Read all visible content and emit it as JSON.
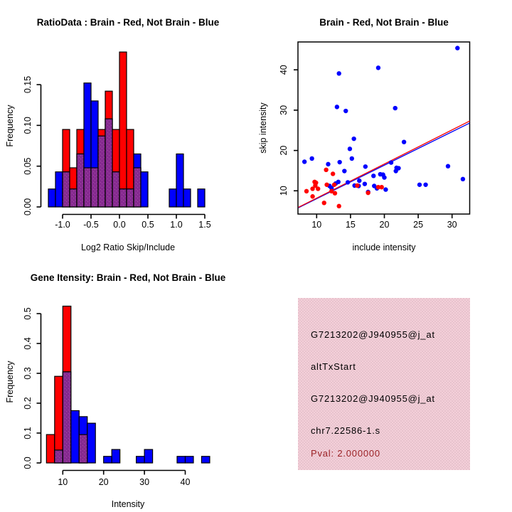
{
  "figure": {
    "background": "#ffffff",
    "colors": {
      "brain_red": "#ff0000",
      "not_brain_blue": "#0000ff",
      "overlap_purple": "#862a90",
      "overlap_dot": "#a850a8",
      "axis": "#000000",
      "pval_text": "#9b2226",
      "info_panel_pink": "#eec9d3"
    }
  },
  "chart_data": [
    {
      "id": "ratio_hist",
      "type": "bar",
      "subtype": "overlaid-histogram",
      "title": "RatioData : Brain - Red, Not Brain - Blue",
      "xlabel": "Log2 Ratio Skip/Include",
      "ylabel": "Frequency",
      "legend_note": "Brain = red, Not Brain = blue, overlap = purple",
      "x_ticks": [
        "-1.0",
        "-0.5",
        "0.0",
        "0.5",
        "1.0",
        "1.5"
      ],
      "x_tick_values": [
        -1.0,
        -0.5,
        0.0,
        0.5,
        1.0,
        1.5
      ],
      "y_ticks": [
        "0.00",
        "0.05",
        "0.10",
        "0.15"
      ],
      "y_tick_values": [
        0.0,
        0.05,
        0.1,
        0.15
      ],
      "xlim": [
        -1.3,
        1.55
      ],
      "ylim": [
        0,
        0.19
      ],
      "bin_width": 0.125,
      "bars": [
        {
          "x0": -1.25,
          "red": 0,
          "blue": 0.022
        },
        {
          "x0": -1.125,
          "red": 0,
          "blue": 0.043
        },
        {
          "x0": -1.0,
          "red": 0.095,
          "blue": 0.043
        },
        {
          "x0": -0.875,
          "red": 0.048,
          "blue": 0.022
        },
        {
          "x0": -0.75,
          "red": 0.095,
          "blue": 0.065
        },
        {
          "x0": -0.625,
          "red": 0.048,
          "blue": 0.152
        },
        {
          "x0": -0.5,
          "red": 0.048,
          "blue": 0.13
        },
        {
          "x0": -0.375,
          "red": 0.095,
          "blue": 0.087
        },
        {
          "x0": -0.25,
          "red": 0.142,
          "blue": 0.108
        },
        {
          "x0": -0.125,
          "red": 0.095,
          "blue": 0.043
        },
        {
          "x0": 0.0,
          "red": 0.19,
          "blue": 0.022
        },
        {
          "x0": 0.125,
          "red": 0.095,
          "blue": 0.022
        },
        {
          "x0": 0.25,
          "red": 0.048,
          "blue": 0.065
        },
        {
          "x0": 0.375,
          "red": 0,
          "blue": 0.043
        },
        {
          "x0": 0.875,
          "red": 0,
          "blue": 0.022
        },
        {
          "x0": 1.0,
          "red": 0,
          "blue": 0.065
        },
        {
          "x0": 1.125,
          "red": 0,
          "blue": 0.022
        },
        {
          "x0": 1.375,
          "red": 0,
          "blue": 0.022
        }
      ]
    },
    {
      "id": "scatter",
      "type": "scatter",
      "title": "Brain - Red, Not Brain - Blue",
      "xlabel": "include intensity",
      "ylabel": "skip intensity",
      "x_ticks": [
        "10",
        "15",
        "20",
        "25",
        "30"
      ],
      "x_tick_values": [
        10,
        15,
        20,
        25,
        30
      ],
      "y_ticks": [
        "10",
        "20",
        "30",
        "40"
      ],
      "y_tick_values": [
        10,
        20,
        30,
        40
      ],
      "xlim": [
        7.3,
        32.6
      ],
      "ylim": [
        4.2,
        46.9
      ],
      "series": [
        {
          "name": "Not Brain",
          "color": "blue",
          "points": [
            [
              30.8,
              45.4
            ],
            [
              19.1,
              40.5
            ],
            [
              13.3,
              39.1
            ],
            [
              13.0,
              30.8
            ],
            [
              14.3,
              29.8
            ],
            [
              21.6,
              30.5
            ],
            [
              15.5,
              22.9
            ],
            [
              22.9,
              22.1
            ],
            [
              14.9,
              20.4
            ],
            [
              15.2,
              18.0
            ],
            [
              9.3,
              18.0
            ],
            [
              8.2,
              17.2
            ],
            [
              13.4,
              17.1
            ],
            [
              11.7,
              16.6
            ],
            [
              21.0,
              17.0
            ],
            [
              14.1,
              14.9
            ],
            [
              29.4,
              16.1
            ],
            [
              21.8,
              15.7
            ],
            [
              22.1,
              15.6
            ],
            [
              21.7,
              14.9
            ],
            [
              17.2,
              16.0
            ],
            [
              19.4,
              14.1
            ],
            [
              19.8,
              14.0
            ],
            [
              20.0,
              13.3
            ],
            [
              18.4,
              13.7
            ],
            [
              16.3,
              12.5
            ],
            [
              17.1,
              11.7
            ],
            [
              16.2,
              11.2
            ],
            [
              15.6,
              11.3
            ],
            [
              14.6,
              12.1
            ],
            [
              13.2,
              12.2
            ],
            [
              12.8,
              11.8
            ],
            [
              11.9,
              11.2
            ],
            [
              18.5,
              11.2
            ],
            [
              18.9,
              10.6
            ],
            [
              20.2,
              10.3
            ],
            [
              17.6,
              9.7
            ],
            [
              31.6,
              12.9
            ],
            [
              25.2,
              11.5
            ],
            [
              26.1,
              11.5
            ],
            [
              12.2,
              10.7
            ]
          ]
        },
        {
          "name": "Brain",
          "color": "red",
          "points": [
            [
              11.4,
              15.2
            ],
            [
              12.4,
              14.2
            ],
            [
              9.7,
              12.2
            ],
            [
              9.9,
              12.0
            ],
            [
              9.8,
              11.3
            ],
            [
              9.4,
              10.5
            ],
            [
              10.2,
              10.5
            ],
            [
              11.5,
              11.5
            ],
            [
              12.6,
              11.5
            ],
            [
              12.2,
              9.9
            ],
            [
              12.7,
              9.4
            ],
            [
              8.5,
              9.9
            ],
            [
              9.4,
              8.6
            ],
            [
              11.1,
              7.0
            ],
            [
              13.3,
              6.2
            ],
            [
              16.0,
              11.3
            ],
            [
              17.6,
              9.5
            ],
            [
              19.1,
              10.9
            ],
            [
              19.6,
              10.9
            ]
          ]
        }
      ],
      "fit_lines": [
        {
          "name": "blue-fit",
          "color": "blue",
          "x1": 7.3,
          "y1": 5.8,
          "x2": 32.6,
          "y2": 26.8
        },
        {
          "name": "red-fit",
          "color": "red",
          "x1": 7.3,
          "y1": 5.9,
          "x2": 32.6,
          "y2": 27.3
        }
      ]
    },
    {
      "id": "gene_hist",
      "type": "bar",
      "subtype": "overlaid-histogram",
      "title": "Gene Itensity: Brain - Red, Not Brain - Blue",
      "xlabel": "Intensity",
      "ylabel": "Frequency",
      "x_ticks": [
        "10",
        "20",
        "30",
        "40"
      ],
      "x_tick_values": [
        10,
        20,
        30,
        40
      ],
      "y_ticks": [
        "0.0",
        "0.1",
        "0.2",
        "0.3",
        "0.4",
        "0.5"
      ],
      "y_tick_values": [
        0.0,
        0.1,
        0.2,
        0.3,
        0.4,
        0.5
      ],
      "xlim": [
        6,
        46
      ],
      "ylim": [
        0,
        0.525
      ],
      "bin_width": 2,
      "bars": [
        {
          "x0": 6,
          "red": 0.095,
          "blue": 0
        },
        {
          "x0": 8,
          "red": 0.29,
          "blue": 0.043
        },
        {
          "x0": 10,
          "red": 0.525,
          "blue": 0.305
        },
        {
          "x0": 12,
          "red": 0,
          "blue": 0.175
        },
        {
          "x0": 14,
          "red": 0.095,
          "blue": 0.155
        },
        {
          "x0": 16,
          "red": 0,
          "blue": 0.133
        },
        {
          "x0": 20,
          "red": 0,
          "blue": 0.022
        },
        {
          "x0": 22,
          "red": 0,
          "blue": 0.045
        },
        {
          "x0": 28,
          "red": 0,
          "blue": 0.022
        },
        {
          "x0": 30,
          "red": 0,
          "blue": 0.045
        },
        {
          "x0": 38,
          "red": 0,
          "blue": 0.022
        },
        {
          "x0": 40,
          "red": 0,
          "blue": 0.022
        },
        {
          "x0": 44,
          "red": 0,
          "blue": 0.022
        }
      ]
    },
    {
      "id": "info_box",
      "type": "table",
      "lines": [
        {
          "text": "G7213202@J940955@j_at",
          "color": "black"
        },
        {
          "text": "altTxStart",
          "color": "black"
        },
        {
          "text": "G7213202@J940955@j_at",
          "color": "black"
        },
        {
          "text": "chr7.22586-1.s",
          "color": "black"
        },
        {
          "text": "Pval: 2.000000",
          "color": "dark-red"
        }
      ]
    }
  ]
}
